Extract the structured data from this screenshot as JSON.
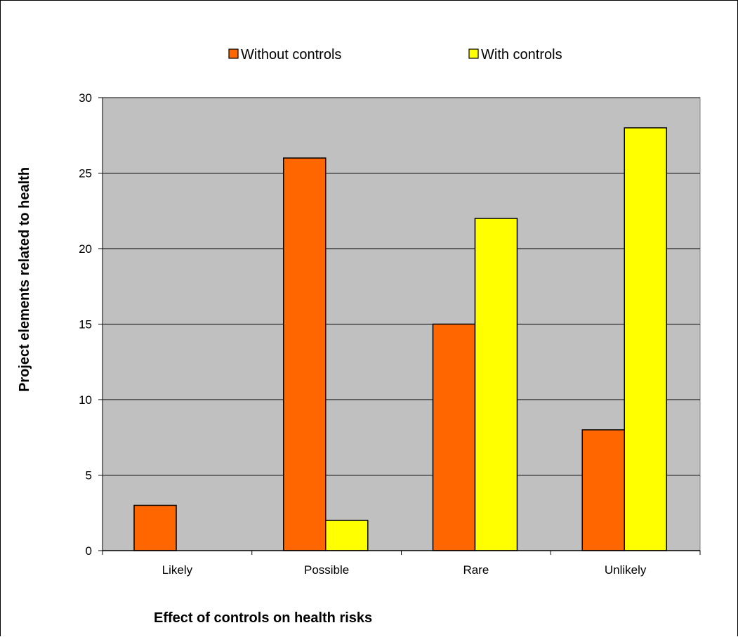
{
  "chart_data": {
    "type": "bar",
    "categories": [
      "Likely",
      "Possible",
      "Rare",
      "Unlikely"
    ],
    "series": [
      {
        "name": "Without controls",
        "values": [
          3,
          26,
          15,
          8
        ],
        "color": "#FF6600"
      },
      {
        "name": "With controls",
        "values": [
          0,
          2,
          22,
          28
        ],
        "color": "#FFFF00"
      }
    ],
    "xlabel": "Effect of controls on health risks",
    "ylabel": "Project elements related to health",
    "ylim": [
      0,
      30
    ],
    "yticks": [
      0,
      5,
      10,
      15,
      20,
      25,
      30
    ],
    "grid": true,
    "plot_background": "#C0C0C0",
    "legend_position": "top"
  }
}
